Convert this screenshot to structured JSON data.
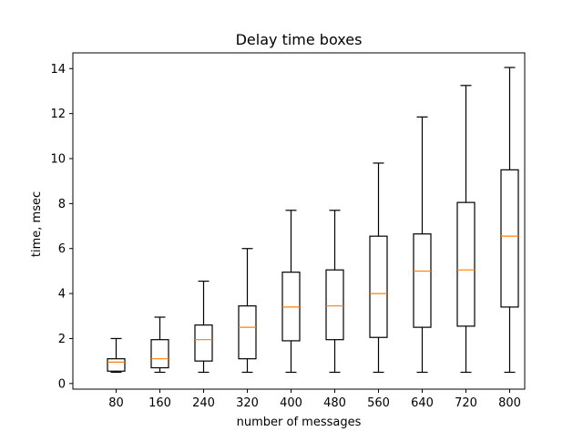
{
  "chart_data": {
    "type": "boxplot",
    "title": "Delay time boxes",
    "xlabel": "number of messages",
    "ylabel": "time, msec",
    "categories": [
      "80",
      "160",
      "240",
      "320",
      "400",
      "480",
      "560",
      "640",
      "720",
      "800"
    ],
    "boxes": [
      {
        "category": "80",
        "whisker_low": 0.5,
        "q1": 0.55,
        "median": 0.95,
        "q3": 1.1,
        "whisker_high": 2.0
      },
      {
        "category": "160",
        "whisker_low": 0.5,
        "q1": 0.7,
        "median": 1.1,
        "q3": 1.95,
        "whisker_high": 2.95
      },
      {
        "category": "240",
        "whisker_low": 0.5,
        "q1": 1.0,
        "median": 1.95,
        "q3": 2.6,
        "whisker_high": 4.55
      },
      {
        "category": "320",
        "whisker_low": 0.5,
        "q1": 1.1,
        "median": 2.5,
        "q3": 3.45,
        "whisker_high": 6.0
      },
      {
        "category": "400",
        "whisker_low": 0.5,
        "q1": 1.9,
        "median": 3.4,
        "q3": 4.95,
        "whisker_high": 7.7
      },
      {
        "category": "480",
        "whisker_low": 0.5,
        "q1": 1.95,
        "median": 3.45,
        "q3": 5.05,
        "whisker_high": 7.7
      },
      {
        "category": "560",
        "whisker_low": 0.5,
        "q1": 2.05,
        "median": 4.0,
        "q3": 6.55,
        "whisker_high": 9.8
      },
      {
        "category": "640",
        "whisker_low": 0.5,
        "q1": 2.5,
        "median": 5.0,
        "q3": 6.65,
        "whisker_high": 11.85
      },
      {
        "category": "720",
        "whisker_low": 0.5,
        "q1": 2.55,
        "median": 5.05,
        "q3": 8.05,
        "whisker_high": 13.25
      },
      {
        "category": "800",
        "whisker_low": 0.5,
        "q1": 3.4,
        "median": 6.55,
        "q3": 9.5,
        "whisker_high": 14.05
      }
    ],
    "yticks": [
      0,
      2,
      4,
      6,
      8,
      10,
      12,
      14
    ],
    "ylim": [
      -0.25,
      14.7
    ],
    "grid": false,
    "colors": {
      "box": "#000000",
      "median": "#ff7f0e",
      "axes": "#000000"
    }
  }
}
